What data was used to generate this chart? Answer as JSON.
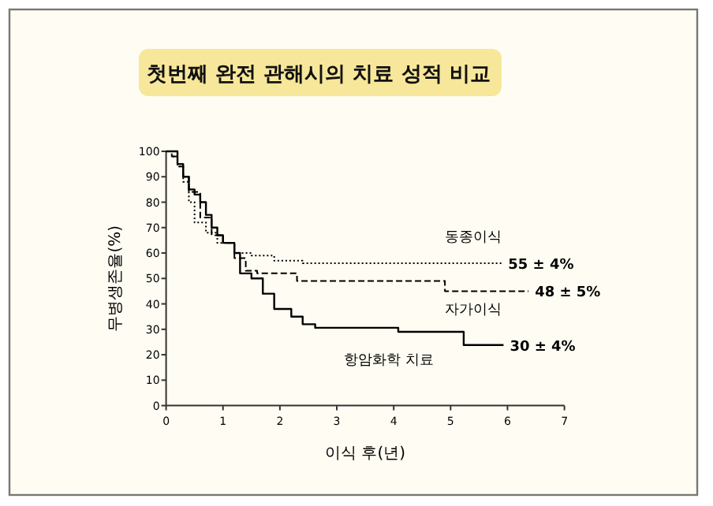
{
  "chart_data": {
    "type": "step",
    "title": "첫번째 완전 관해시의 치료 성적 비교",
    "xlabel": "이식 후(년)",
    "ylabel": "무병생존율(%)",
    "xlim": [
      0,
      7
    ],
    "ylim": [
      0,
      100
    ],
    "xticks": [
      0,
      1,
      2,
      3,
      4,
      5,
      6,
      7
    ],
    "yticks": [
      0,
      10,
      20,
      30,
      40,
      50,
      60,
      70,
      80,
      90,
      100
    ],
    "grid": false,
    "series": [
      {
        "name": "동종이식",
        "color": "#000000",
        "line_style": "dotted",
        "x": [
          0,
          0.1,
          0.2,
          0.3,
          0.4,
          0.5,
          0.7,
          0.9,
          1.2,
          1.5,
          1.9,
          2.4,
          5.9
        ],
        "values": [
          100,
          98,
          94,
          88,
          80,
          72,
          68,
          64,
          60,
          59,
          57,
          56,
          56
        ]
      },
      {
        "name": "자가이식",
        "color": "#000000",
        "line_style": "dashed",
        "x": [
          0,
          0.1,
          0.2,
          0.3,
          0.4,
          0.6,
          0.8,
          1.0,
          1.2,
          1.4,
          1.6,
          2.3,
          4.9,
          6.37
        ],
        "values": [
          100,
          98,
          94,
          90,
          84,
          74,
          67,
          64,
          58,
          53,
          52,
          49,
          45,
          45
        ]
      },
      {
        "name": "항암화학 치료",
        "color": "#000000",
        "line_style": "solid",
        "x": [
          0,
          0.1,
          0.2,
          0.3,
          0.4,
          0.5,
          0.6,
          0.7,
          0.8,
          0.9,
          1.0,
          1.2,
          1.3,
          1.5,
          1.7,
          1.9,
          2.2,
          2.4,
          2.62,
          4.08,
          5.23,
          5.93
        ],
        "values": [
          100,
          100,
          95,
          90,
          85,
          83,
          80,
          75,
          70,
          67,
          64,
          60,
          52,
          50,
          44,
          38,
          35,
          32,
          30.6,
          29,
          23.8,
          23.8
        ]
      }
    ],
    "annotations": [
      {
        "text": "55 ± 4%",
        "x": 5.9,
        "y": 56
      },
      {
        "text": "48 ± 5%",
        "x": 6.37,
        "y": 45
      },
      {
        "text": "30 ± 4%",
        "x": 5.93,
        "y": 23.8
      }
    ]
  }
}
